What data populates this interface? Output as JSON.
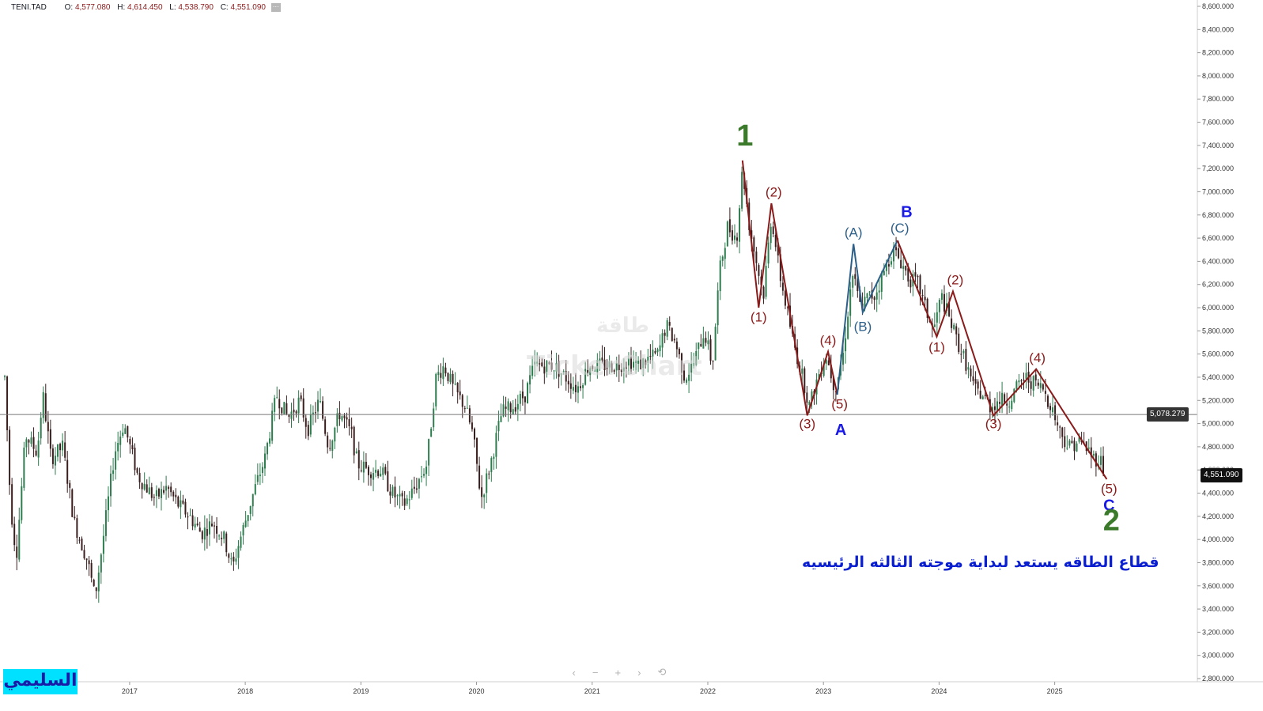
{
  "symbol": "TENI.TAD",
  "ohlc": {
    "o_label": "O:",
    "o": "4,577.080",
    "h_label": "H:",
    "h": "4,614.450",
    "l_label": "L:",
    "l": "4,538.790",
    "c_label": "C:",
    "c": "4,551.090"
  },
  "watermark": "TickerChart",
  "watermark_ar": "طاقة",
  "caption": "قطاع الطاقه يستعد لبداية موجته الثالثه الرئيسيه",
  "signature": "السليمي",
  "nav": {
    "prev": "‹",
    "minus": "−",
    "plus": "+",
    "next": "›",
    "reset": "⟲"
  },
  "colors": {
    "up": "#2e7d4f",
    "down": "#3b1f1f",
    "red_wave": "#8b1a1a",
    "blue_wave": "#2c5f8a",
    "green_label": "#3a7a2a",
    "blue_label": "#1a1ae6"
  },
  "chart_data": {
    "type": "candlestick",
    "x_axis_labels": [
      "2017",
      "2018",
      "2019",
      "2020",
      "2021",
      "2022",
      "2023",
      "2024",
      "2025"
    ],
    "y_axis_labels": [
      "2,800.000",
      "3,000.000",
      "3,200.000",
      "3,400.000",
      "3,600.000",
      "3,800.000",
      "4,000.000",
      "4,200.000",
      "4,400.000",
      "4,600.000",
      "4,800.000",
      "5,000.000",
      "5,200.000",
      "5,400.000",
      "5,600.000",
      "5,800.000",
      "6,000.000",
      "6,200.000",
      "6,400.000",
      "6,600.000",
      "6,800.000",
      "7,000.000",
      "7,200.000",
      "7,400.000",
      "7,600.000",
      "7,800.000",
      "8,000.000",
      "8,200.000",
      "8,400.000",
      "8,600.000"
    ],
    "ylim": [
      2800,
      8600
    ],
    "x_range": [
      2016.0,
      2026.3
    ],
    "horizontal_line": {
      "value": 5078.279,
      "label": "5,078.279"
    },
    "last_price": {
      "value": 4551.09,
      "label": "4,551.090"
    },
    "price_path": [
      [
        2016.0,
        5400
      ],
      [
        2016.05,
        4300
      ],
      [
        2016.1,
        3850
      ],
      [
        2016.18,
        4900
      ],
      [
        2016.28,
        4750
      ],
      [
        2016.33,
        5250
      ],
      [
        2016.4,
        4700
      ],
      [
        2016.5,
        4800
      ],
      [
        2016.6,
        4150
      ],
      [
        2016.72,
        3800
      ],
      [
        2016.78,
        3500
      ],
      [
        2016.85,
        4000
      ],
      [
        2016.95,
        4750
      ],
      [
        2017.03,
        5000
      ],
      [
        2017.15,
        4550
      ],
      [
        2017.3,
        4350
      ],
      [
        2017.4,
        4450
      ],
      [
        2017.5,
        4300
      ],
      [
        2017.6,
        4200
      ],
      [
        2017.7,
        4050
      ],
      [
        2017.8,
        4150
      ],
      [
        2017.9,
        4000
      ],
      [
        2017.97,
        3750
      ],
      [
        2018.02,
        3950
      ],
      [
        2018.15,
        4400
      ],
      [
        2018.25,
        4700
      ],
      [
        2018.35,
        5250
      ],
      [
        2018.45,
        5050
      ],
      [
        2018.55,
        5200
      ],
      [
        2018.62,
        4950
      ],
      [
        2018.72,
        5200
      ],
      [
        2018.8,
        4800
      ],
      [
        2018.9,
        5100
      ],
      [
        2019.0,
        4900
      ],
      [
        2019.05,
        4650
      ],
      [
        2019.15,
        4600
      ],
      [
        2019.25,
        4600
      ],
      [
        2019.35,
        4400
      ],
      [
        2019.45,
        4300
      ],
      [
        2019.55,
        4450
      ],
      [
        2019.65,
        4650
      ],
      [
        2019.73,
        5400
      ],
      [
        2019.8,
        5500
      ],
      [
        2019.88,
        5300
      ],
      [
        2019.98,
        5150
      ],
      [
        2020.05,
        4900
      ],
      [
        2020.12,
        4350
      ],
      [
        2020.2,
        4650
      ],
      [
        2020.3,
        5100
      ],
      [
        2020.4,
        5150
      ],
      [
        2020.5,
        5250
      ],
      [
        2020.58,
        5500
      ],
      [
        2020.65,
        5500
      ],
      [
        2020.75,
        5500
      ],
      [
        2020.85,
        5400
      ],
      [
        2020.95,
        5300
      ],
      [
        2021.05,
        5500
      ],
      [
        2021.15,
        5500
      ],
      [
        2021.3,
        5500
      ],
      [
        2021.4,
        5550
      ],
      [
        2021.48,
        5500
      ],
      [
        2021.55,
        5550
      ],
      [
        2021.65,
        5600
      ],
      [
        2021.72,
        5850
      ],
      [
        2021.8,
        5700
      ],
      [
        2021.88,
        5400
      ],
      [
        2021.95,
        5500
      ],
      [
        2022.05,
        5800
      ],
      [
        2022.12,
        5500
      ],
      [
        2022.18,
        6300
      ],
      [
        2022.25,
        6700
      ],
      [
        2022.33,
        6600
      ],
      [
        2022.38,
        7200
      ],
      [
        2022.44,
        6700
      ],
      [
        2022.5,
        6400
      ],
      [
        2022.56,
        6100
      ],
      [
        2022.63,
        6800
      ],
      [
        2022.7,
        6300
      ],
      [
        2022.76,
        6000
      ],
      [
        2022.82,
        5700
      ],
      [
        2022.9,
        5400
      ],
      [
        2022.96,
        5150
      ],
      [
        2023.03,
        5400
      ],
      [
        2023.1,
        5600
      ],
      [
        2023.18,
        5300
      ],
      [
        2023.25,
        5600
      ],
      [
        2023.33,
        6300
      ],
      [
        2023.4,
        6000
      ],
      [
        2023.47,
        6100
      ],
      [
        2023.52,
        6100
      ],
      [
        2023.6,
        6300
      ],
      [
        2023.68,
        6500
      ],
      [
        2023.75,
        6400
      ],
      [
        2023.82,
        6250
      ],
      [
        2023.9,
        6200
      ],
      [
        2023.96,
        6000
      ],
      [
        2024.03,
        5800
      ],
      [
        2024.1,
        6100
      ],
      [
        2024.17,
        5900
      ],
      [
        2024.24,
        5700
      ],
      [
        2024.32,
        5500
      ],
      [
        2024.38,
        5300
      ],
      [
        2024.45,
        5250
      ],
      [
        2024.52,
        5150
      ],
      [
        2024.6,
        5200
      ],
      [
        2024.68,
        5200
      ],
      [
        2024.75,
        5300
      ],
      [
        2024.82,
        5400
      ],
      [
        2024.9,
        5350
      ],
      [
        2024.98,
        5300
      ],
      [
        2025.05,
        5150
      ],
      [
        2025.12,
        4950
      ],
      [
        2025.2,
        4800
      ],
      [
        2025.28,
        4850
      ],
      [
        2025.35,
        4800
      ],
      [
        2025.42,
        4700
      ],
      [
        2025.47,
        4700
      ],
      [
        2025.52,
        4560
      ]
    ],
    "wave_lines": {
      "red_abc_A": [
        [
          2022.38,
          7270
        ],
        [
          2022.52,
          6000
        ],
        [
          2022.63,
          6900
        ],
        [
          2022.94,
          5070
        ],
        [
          2023.12,
          5620
        ],
        [
          2023.2,
          5250
        ]
      ],
      "blue_B": [
        [
          2023.2,
          5250
        ],
        [
          2023.34,
          6550
        ],
        [
          2023.42,
          5960
        ],
        [
          2023.72,
          6580
        ]
      ],
      "red_C": [
        [
          2023.72,
          6580
        ],
        [
          2024.06,
          5750
        ],
        [
          2024.2,
          6140
        ],
        [
          2024.55,
          5070
        ],
        [
          2024.92,
          5470
        ],
        [
          2025.53,
          4520
        ]
      ]
    },
    "annotations": [
      {
        "text": "1",
        "x": 2022.4,
        "y": 7400,
        "style": "green_big"
      },
      {
        "text": "(2)",
        "x": 2022.65,
        "y": 6960,
        "style": "red"
      },
      {
        "text": "(1)",
        "x": 2022.52,
        "y": 5880,
        "style": "red"
      },
      {
        "text": "(3)",
        "x": 2022.94,
        "y": 4960,
        "style": "red"
      },
      {
        "text": "(4)",
        "x": 2023.12,
        "y": 5680,
        "style": "red"
      },
      {
        "text": "(5)",
        "x": 2023.22,
        "y": 5130,
        "style": "red"
      },
      {
        "text": "A",
        "x": 2023.23,
        "y": 4900,
        "style": "blue_bold"
      },
      {
        "text": "(A)",
        "x": 2023.34,
        "y": 6610,
        "style": "steel"
      },
      {
        "text": "(B)",
        "x": 2023.42,
        "y": 5800,
        "style": "steel"
      },
      {
        "text": "(C)",
        "x": 2023.74,
        "y": 6650,
        "style": "steel"
      },
      {
        "text": "B",
        "x": 2023.8,
        "y": 6780,
        "style": "blue_bold"
      },
      {
        "text": "(2)",
        "x": 2024.22,
        "y": 6200,
        "style": "red"
      },
      {
        "text": "(1)",
        "x": 2024.06,
        "y": 5620,
        "style": "red"
      },
      {
        "text": "(3)",
        "x": 2024.55,
        "y": 4960,
        "style": "red"
      },
      {
        "text": "(4)",
        "x": 2024.93,
        "y": 5530,
        "style": "red"
      },
      {
        "text": "(5)",
        "x": 2025.55,
        "y": 4400,
        "style": "red"
      },
      {
        "text": "C",
        "x": 2025.55,
        "y": 4250,
        "style": "blue_bold"
      },
      {
        "text": "2",
        "x": 2025.57,
        "y": 4080,
        "style": "green_big"
      }
    ]
  }
}
